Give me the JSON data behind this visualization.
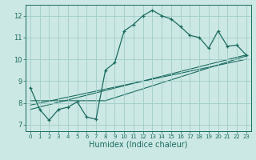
{
  "xlabel": "Humidex (Indice chaleur)",
  "bg_color": "#cce8e4",
  "grid_color": "#a0ccc8",
  "line_color": "#1a6b60",
  "xlim": [
    -0.5,
    23.5
  ],
  "ylim": [
    6.7,
    12.5
  ],
  "xticks": [
    0,
    1,
    2,
    3,
    4,
    5,
    6,
    7,
    8,
    9,
    10,
    11,
    12,
    13,
    14,
    15,
    16,
    17,
    18,
    19,
    20,
    21,
    22,
    23
  ],
  "yticks": [
    7,
    8,
    9,
    10,
    11,
    12
  ],
  "main_x": [
    0,
    1,
    2,
    3,
    4,
    5,
    6,
    7,
    8,
    9,
    10,
    11,
    12,
    13,
    14,
    15,
    16,
    17,
    18,
    19,
    20,
    21,
    22,
    23
  ],
  "main_y": [
    8.7,
    7.7,
    7.2,
    7.7,
    7.8,
    8.05,
    7.35,
    7.25,
    9.5,
    9.85,
    11.3,
    11.6,
    12.0,
    12.25,
    12.0,
    11.85,
    11.5,
    11.1,
    11.0,
    10.5,
    11.3,
    10.6,
    10.65,
    10.2
  ],
  "line2_x": [
    0,
    23
  ],
  "line2_y": [
    7.9,
    10.0
  ],
  "line3_x": [
    0,
    23
  ],
  "line3_y": [
    7.7,
    10.2
  ],
  "line4_x": [
    0,
    8,
    23
  ],
  "line4_y": [
    8.1,
    8.1,
    10.15
  ],
  "xlabel_fontsize": 7,
  "xtick_fontsize": 5,
  "ytick_fontsize": 6
}
